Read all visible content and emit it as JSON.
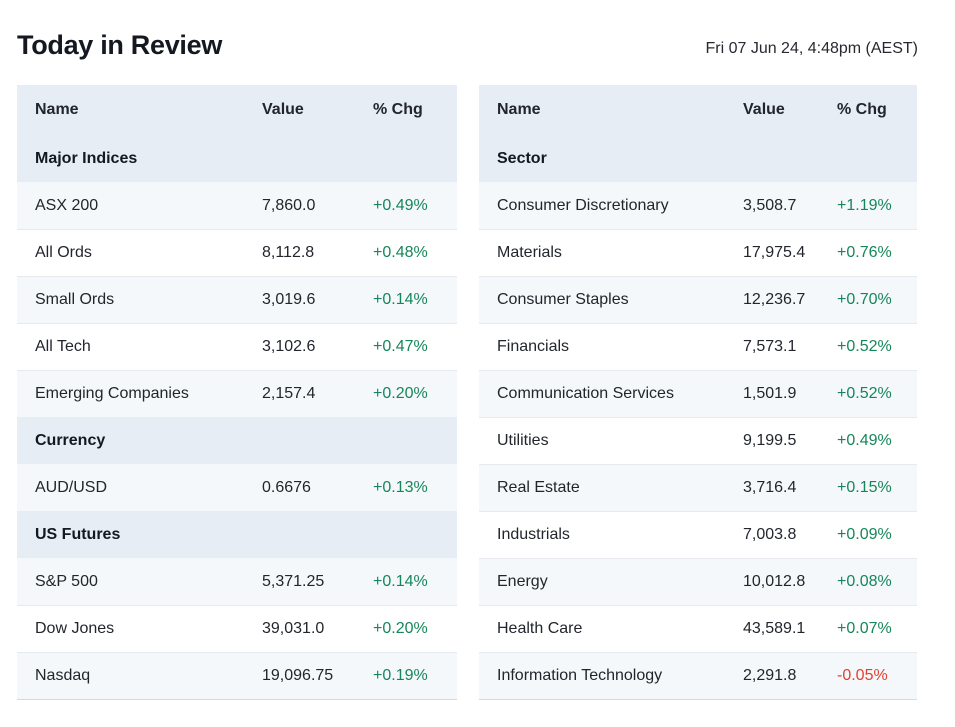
{
  "page": {
    "title": "Today in Review",
    "timestamp": "Fri 07 Jun 24, 4:48pm (AEST)"
  },
  "colors": {
    "positive": "#16865a",
    "negative": "#e2402f",
    "header_bg": "#e7edf5",
    "row_tint_bg": "#f5f8fb"
  },
  "indices_table": {
    "headers": {
      "name": "Name",
      "value": "Value",
      "chg": "% Chg"
    },
    "sections": [
      {
        "title": "Major Indices",
        "rows": [
          {
            "name": "ASX 200",
            "value": "7,860.0",
            "chg": "+0.49%",
            "direction": "up"
          },
          {
            "name": "All Ords",
            "value": "8,112.8",
            "chg": "+0.48%",
            "direction": "up"
          },
          {
            "name": "Small Ords",
            "value": "3,019.6",
            "chg": "+0.14%",
            "direction": "up"
          },
          {
            "name": "All Tech",
            "value": "3,102.6",
            "chg": "+0.47%",
            "direction": "up"
          },
          {
            "name": "Emerging Companies",
            "value": "2,157.4",
            "chg": "+0.20%",
            "direction": "up"
          }
        ]
      },
      {
        "title": "Currency",
        "rows": [
          {
            "name": "AUD/USD",
            "value": "0.6676",
            "chg": "+0.13%",
            "direction": "up"
          }
        ]
      },
      {
        "title": "US Futures",
        "rows": [
          {
            "name": "S&P 500",
            "value": "5,371.25",
            "chg": "+0.14%",
            "direction": "up"
          },
          {
            "name": "Dow Jones",
            "value": "39,031.0",
            "chg": "+0.20%",
            "direction": "up"
          },
          {
            "name": "Nasdaq",
            "value": "19,096.75",
            "chg": "+0.19%",
            "direction": "up"
          }
        ]
      }
    ]
  },
  "sectors_table": {
    "headers": {
      "name": "Name",
      "value": "Value",
      "chg": "% Chg"
    },
    "sections": [
      {
        "title": "Sector",
        "rows": [
          {
            "name": "Consumer Discretionary",
            "value": "3,508.7",
            "chg": "+1.19%",
            "direction": "up"
          },
          {
            "name": "Materials",
            "value": "17,975.4",
            "chg": "+0.76%",
            "direction": "up"
          },
          {
            "name": "Consumer Staples",
            "value": "12,236.7",
            "chg": "+0.70%",
            "direction": "up"
          },
          {
            "name": "Financials",
            "value": "7,573.1",
            "chg": "+0.52%",
            "direction": "up"
          },
          {
            "name": "Communication Services",
            "value": "1,501.9",
            "chg": "+0.52%",
            "direction": "up"
          },
          {
            "name": "Utilities",
            "value": "9,199.5",
            "chg": "+0.49%",
            "direction": "up"
          },
          {
            "name": "Real Estate",
            "value": "3,716.4",
            "chg": "+0.15%",
            "direction": "up"
          },
          {
            "name": "Industrials",
            "value": "7,003.8",
            "chg": "+0.09%",
            "direction": "up"
          },
          {
            "name": "Energy",
            "value": "10,012.8",
            "chg": "+0.08%",
            "direction": "up"
          },
          {
            "name": "Health Care",
            "value": "43,589.1",
            "chg": "+0.07%",
            "direction": "up"
          },
          {
            "name": "Information Technology",
            "value": "2,291.8",
            "chg": "-0.05%",
            "direction": "down"
          }
        ]
      }
    ]
  }
}
